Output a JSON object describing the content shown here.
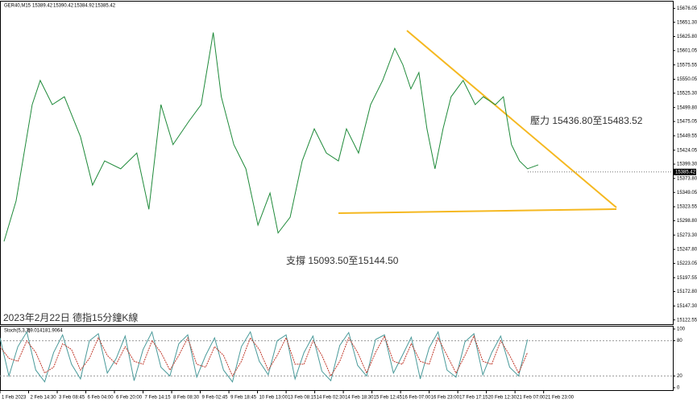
{
  "chart_data": [
    {
      "type": "line",
      "symbol": "GER40,M15",
      "ohlc": [
        15389.42,
        15390.42,
        15384.92,
        15385.42
      ],
      "title": "2023年2月22日 德指15分鐘K線",
      "annotations": [
        "壓力 15436.80至15483.52",
        "支撐 15093.50至15144.50"
      ],
      "x": [
        9,
        36,
        72,
        90,
        117,
        144,
        180,
        207,
        234,
        270,
        306,
        333,
        360,
        387,
        423,
        450,
        477,
        495,
        523,
        550,
        577,
        604,
        622,
        649,
        676,
        703,
        730,
        757,
        775,
        802,
        829,
        856,
        883,
        901,
        919,
        937,
        955,
        973,
        991,
        1009,
        1036,
        1063,
        1081,
        1108,
        1126,
        1144,
        1162,
        1180,
        1204
      ],
      "series": [
        {
          "name": "GER40",
          "color": "#1f8a3a",
          "values": [
            15262,
            15334,
            15505,
            15548,
            15505,
            15519,
            15448,
            15362,
            15405,
            15391,
            15419,
            15319,
            15505,
            15434,
            15476,
            15505,
            15633,
            15519,
            15434,
            15391,
            15291,
            15348,
            15277,
            15305,
            15405,
            15462,
            15419,
            15405,
            15462,
            15419,
            15505,
            15548,
            15605,
            15576,
            15533,
            15562,
            15462,
            15391,
            15462,
            15519,
            15548,
            15505,
            15519,
            15505,
            15519,
            15434,
            15405,
            15391,
            15398
          ]
        }
      ],
      "xlim": [
        0,
        1505
      ],
      "xticks": [
        {
          "value": 0,
          "label": "1 Feb 2023"
        },
        {
          "value": 64,
          "label": "2 Feb 14:30"
        },
        {
          "value": 128,
          "label": "3 Feb 08:45"
        },
        {
          "value": 192,
          "label": "6 Feb 04:00"
        },
        {
          "value": 256,
          "label": "6 Feb 20:00"
        },
        {
          "value": 320,
          "label": "7 Feb 14:15"
        },
        {
          "value": 384,
          "label": "8 Feb 08:30"
        },
        {
          "value": 448,
          "label": "9 Feb 02:45"
        },
        {
          "value": 512,
          "label": "9 Feb 18:45"
        },
        {
          "value": 576,
          "label": "10 Feb 13:00"
        },
        {
          "value": 640,
          "label": "13 Feb 08:15"
        },
        {
          "value": 704,
          "label": "14 Feb 02:30"
        },
        {
          "value": 768,
          "label": "14 Feb 18:30"
        },
        {
          "value": 832,
          "label": "15 Feb 12:45"
        },
        {
          "value": 896,
          "label": "16 Feb 07:00"
        },
        {
          "value": 960,
          "label": "16 Feb 23:00"
        },
        {
          "value": 1024,
          "label": "17 Feb 17:15"
        },
        {
          "value": 1088,
          "label": "20 Feb 12:30"
        },
        {
          "value": 1152,
          "label": "21 Feb 07:00"
        },
        {
          "value": 1216,
          "label": "21 Feb 23:00"
        }
      ],
      "ylim": [
        15115,
        15688
      ],
      "yticks": [
        15676.05,
        {
          "value": 15651.3,
          "label": "15651.30"
        },
        {
          "value": 15625.8,
          "label": "15625.80"
        },
        15601.05,
        15575.55,
        15550.05,
        {
          "value": 15525.3,
          "label": "15525.30"
        },
        {
          "value": 15499.8,
          "label": "15499.80"
        },
        15475.05,
        15449.55,
        15424.05,
        {
          "value": 15399.3,
          "label": "15399.30"
        },
        {
          "value": 15373.8,
          "label": "15373.80"
        },
        15349.05,
        15323.55,
        {
          "value": 15298.8,
          "label": "15298.80"
        },
        {
          "value": 15273.3,
          "label": "15273.30"
        },
        {
          "value": 15247.8,
          "label": "15247.80"
        },
        15223.05,
        15197.55,
        {
          "value": 15172.8,
          "label": "15172.80"
        },
        {
          "value": 15147.3,
          "label": "15147.30"
        },
        15122.55
      ]
    },
    {
      "type": "line",
      "indicator": "Stoch(5,3,3)",
      "readings": [
        69.0141,
        81.9064
      ],
      "x": [
        0,
        20,
        40,
        60,
        80,
        100,
        120,
        140,
        160,
        180,
        200,
        220,
        240,
        260,
        280,
        300,
        320,
        340,
        360,
        380,
        400,
        420,
        440,
        460,
        480,
        500,
        520,
        540,
        560,
        580,
        600,
        620,
        640,
        660,
        680,
        700,
        720,
        740,
        760,
        780,
        800,
        820,
        840,
        860,
        880,
        900,
        920,
        940,
        960,
        980,
        1000,
        1020,
        1040,
        1060,
        1080,
        1100,
        1120,
        1140,
        1160,
        1180
      ],
      "series": [
        {
          "name": "Main",
          "color": "#4a9a9a",
          "values": [
            85,
            20,
            70,
            95,
            30,
            10,
            60,
            90,
            40,
            15,
            80,
            92,
            25,
            50,
            88,
            12,
            65,
            95,
            35,
            20,
            75,
            90,
            18,
            55,
            85,
            30,
            10,
            70,
            95,
            45,
            22,
            80,
            90,
            15,
            60,
            88,
            28,
            12,
            72,
            94,
            38,
            20,
            82,
            90,
            25,
            55,
            86,
            15,
            68,
            95,
            30,
            18,
            78,
            92,
            22,
            60,
            88,
            35,
            20,
            82
          ]
        },
        {
          "name": "Signal",
          "color": "#c0392b",
          "values": [
            70,
            50,
            45,
            80,
            60,
            25,
            35,
            75,
            65,
            30,
            50,
            85,
            55,
            40,
            70,
            45,
            40,
            80,
            60,
            30,
            55,
            85,
            40,
            35,
            70,
            55,
            20,
            45,
            85,
            65,
            30,
            55,
            85,
            40,
            40,
            80,
            55,
            20,
            45,
            85,
            60,
            25,
            60,
            88,
            45,
            40,
            75,
            45,
            40,
            85,
            55,
            25,
            55,
            88,
            45,
            40,
            80,
            55,
            25,
            60
          ]
        }
      ],
      "xlim": [
        0,
        1505
      ],
      "ylim": [
        0,
        100
      ],
      "yticks": [
        0,
        20,
        80,
        100
      ]
    }
  ]
}
